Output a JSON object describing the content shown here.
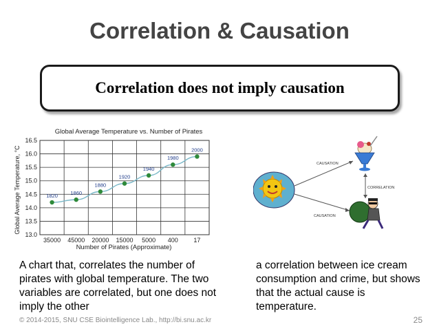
{
  "slide": {
    "title": "Correlation & Causation",
    "callout": "Correlation does not imply causation",
    "caption_left": "A chart that, correlates the number of pirates with global temperature. The two variables are correlated, but one does not imply the other",
    "caption_right": "a correlation between ice cream consumption and crime, but shows that the actual cause is temperature.",
    "footer": "© 2014-2015, SNU CSE Biointelligence Lab., http://bi.snu.ac.kr",
    "page_number": "25"
  },
  "illustration": {
    "causation_top": "CAUSATION",
    "correlation": "CORRELATION",
    "causation_bottom": "CAUSATION"
  },
  "chart_data": {
    "type": "line",
    "title": "Global Average Temperature vs. Number of Pirates",
    "xlabel": "Number of Pirates (Approximate)",
    "ylabel": "Global Average Temperature, °C",
    "categories": [
      "35000",
      "45000",
      "20000",
      "15000",
      "5000",
      "400",
      "17"
    ],
    "values": [
      14.2,
      14.3,
      14.6,
      14.9,
      15.2,
      15.6,
      15.9
    ],
    "point_labels": [
      "1820",
      "1860",
      "1880",
      "1920",
      "1940",
      "1980",
      "2000"
    ],
    "ylim": [
      13.0,
      16.5
    ],
    "yticks": [
      "13.0",
      "13.5",
      "14.0",
      "14.5",
      "15.0",
      "15.5",
      "16.0",
      "16.5"
    ],
    "grid": true,
    "colors": {
      "line": "#7ab8c8",
      "marker": "#2f8a3a",
      "label": "#1f3c8a"
    }
  }
}
